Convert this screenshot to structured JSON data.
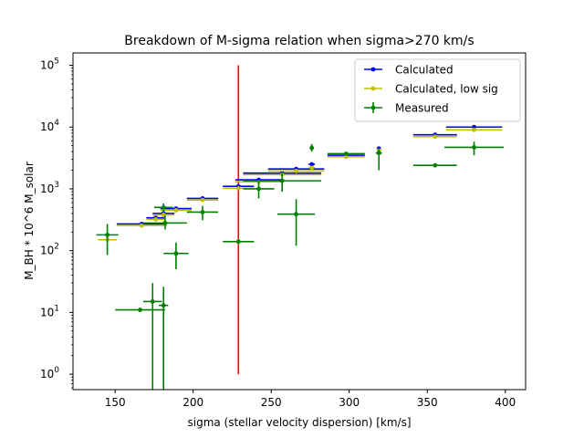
{
  "chart_data": {
    "type": "scatter",
    "title": "Breakdown of M-sigma relation when sigma>270 km/s",
    "xlabel": "sigma (stellar velocity dispersion) [km/s]",
    "ylabel": "M_BH * 10^6 M_solar",
    "xlim": [
      123,
      413
    ],
    "ylim_log10": [
      -0.25,
      5.2
    ],
    "yscale": "log",
    "grid": false,
    "legend_position": "top-right",
    "x_ticks": [
      150,
      200,
      250,
      300,
      350,
      400
    ],
    "y_ticks": [
      {
        "value": 1,
        "label_base": "10",
        "label_exp": "0"
      },
      {
        "value": 10,
        "label_base": "10",
        "label_exp": "1"
      },
      {
        "value": 100,
        "label_base": "10",
        "label_exp": "2"
      },
      {
        "value": 1000,
        "label_base": "10",
        "label_exp": "3"
      },
      {
        "value": 10000,
        "label_base": "10",
        "label_exp": "4"
      },
      {
        "value": 100000,
        "label_base": "10",
        "label_exp": "5"
      }
    ],
    "vertical_line": {
      "x": 229,
      "y_from": 1,
      "y_to": 100000,
      "color": "#ff0000"
    },
    "series": [
      {
        "name": "Calculated",
        "color": "#0000ff",
        "points": [
          {
            "x": 167,
            "y": 270,
            "xerr": 16
          },
          {
            "x": 176,
            "y": 340,
            "xerr": 6
          },
          {
            "x": 181,
            "y": 400,
            "xerr": 7
          },
          {
            "x": 189,
            "y": 480,
            "xerr": 10
          },
          {
            "x": 206,
            "y": 700,
            "xerr": 10
          },
          {
            "x": 229,
            "y": 1100,
            "xerr": 10
          },
          {
            "x": 242,
            "y": 1400,
            "xerr": 15
          },
          {
            "x": 257,
            "y": 1800,
            "xerr": 25
          },
          {
            "x": 266,
            "y": 2100,
            "xerr": 18
          },
          {
            "x": 276,
            "y": 2500,
            "xerr": 2
          },
          {
            "x": 298,
            "y": 3500,
            "xerr": 12
          },
          {
            "x": 319,
            "y": 4500,
            "xerr": 1
          },
          {
            "x": 355,
            "y": 7500,
            "xerr": 14
          },
          {
            "x": 380,
            "y": 10000,
            "xerr": 18
          }
        ]
      },
      {
        "name": "Calculated, low sig",
        "color": "#bfbf00",
        "points": [
          {
            "x": 145,
            "y": 150,
            "xerr": 6
          },
          {
            "x": 167,
            "y": 255,
            "xerr": 16
          },
          {
            "x": 176,
            "y": 320,
            "xerr": 6
          },
          {
            "x": 181,
            "y": 380,
            "xerr": 7
          },
          {
            "x": 189,
            "y": 450,
            "xerr": 10
          },
          {
            "x": 206,
            "y": 660,
            "xerr": 10
          },
          {
            "x": 229,
            "y": 1020,
            "xerr": 10
          },
          {
            "x": 242,
            "y": 1300,
            "xerr": 15
          },
          {
            "x": 257,
            "y": 1700,
            "xerr": 25
          },
          {
            "x": 266,
            "y": 1950,
            "xerr": 18
          },
          {
            "x": 276,
            "y": 2200,
            "xerr": 2
          },
          {
            "x": 298,
            "y": 3300,
            "xerr": 12
          },
          {
            "x": 319,
            "y": 4200,
            "xerr": 1
          },
          {
            "x": 355,
            "y": 7000,
            "xerr": 14
          },
          {
            "x": 380,
            "y": 9000,
            "xerr": 18
          }
        ]
      },
      {
        "name": "Measured",
        "color": "#008000",
        "points": [
          {
            "x": 145,
            "y": 180,
            "xerr": 7,
            "ylow": 85,
            "yhigh": 270
          },
          {
            "x": 166,
            "y": 11,
            "xerr": 16,
            "ylow": 11,
            "yhigh": 11
          },
          {
            "x": 174,
            "y": 15,
            "xerr": 6,
            "ylow": 0.5,
            "yhigh": 30
          },
          {
            "x": 181,
            "y": 13,
            "xerr": 3,
            "ylow": 0.5,
            "yhigh": 26
          },
          {
            "x": 181,
            "y": 500,
            "xerr": 6,
            "ylow": 420,
            "yhigh": 580
          },
          {
            "x": 182,
            "y": 280,
            "xerr": 14,
            "ylow": 220,
            "yhigh": 370
          },
          {
            "x": 189,
            "y": 90,
            "xerr": 8,
            "ylow": 50,
            "yhigh": 135
          },
          {
            "x": 206,
            "y": 420,
            "xerr": 10,
            "ylow": 310,
            "yhigh": 530
          },
          {
            "x": 229,
            "y": 140,
            "xerr": 10,
            "ylow": 140,
            "yhigh": 140
          },
          {
            "x": 242,
            "y": 1000,
            "xerr": 10,
            "ylow": 700,
            "yhigh": 1400
          },
          {
            "x": 257,
            "y": 1350,
            "xerr": 25,
            "ylow": 900,
            "yhigh": 1900
          },
          {
            "x": 266,
            "y": 390,
            "xerr": 12,
            "ylow": 120,
            "yhigh": 680
          },
          {
            "x": 276,
            "y": 4600,
            "xerr": 1,
            "ylow": 4000,
            "yhigh": 5300
          },
          {
            "x": 298,
            "y": 3700,
            "xerr": 12,
            "ylow": 3500,
            "yhigh": 3900
          },
          {
            "x": 319,
            "y": 3800,
            "xerr": 2,
            "ylow": 2000,
            "yhigh": 4500
          },
          {
            "x": 355,
            "y": 2400,
            "xerr": 14,
            "ylow": 2400,
            "yhigh": 2400
          },
          {
            "x": 380,
            "y": 4700,
            "xerr": 19,
            "ylow": 3500,
            "yhigh": 5800
          }
        ]
      }
    ]
  }
}
